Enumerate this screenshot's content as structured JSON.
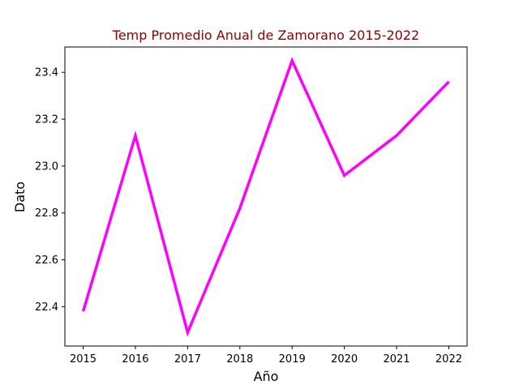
{
  "chart_data": {
    "type": "line",
    "title": "Temp Promedio Anual de Zamorano 2015-2022",
    "xlabel": "Año",
    "ylabel": "Dato",
    "x": [
      2015,
      2016,
      2017,
      2018,
      2019,
      2020,
      2021,
      2022
    ],
    "x_tick_labels": [
      "2015",
      "2016",
      "2017",
      "2018",
      "2019",
      "2020",
      "2021",
      "2022"
    ],
    "y_ticks": [
      22.4,
      22.6,
      22.8,
      23.0,
      23.2,
      23.4
    ],
    "y_tick_labels": [
      "22.4",
      "22.6",
      "22.8",
      "23.0",
      "23.2",
      "23.4"
    ],
    "xlim": [
      2014.65,
      2022.35
    ],
    "ylim": [
      22.232,
      23.508
    ],
    "grid": false,
    "series": [
      {
        "values": [
          22.38,
          23.13,
          22.29,
          22.82,
          23.45,
          22.96,
          23.13,
          23.36
        ],
        "color": "#ff00ff"
      }
    ],
    "title_color": "#8b0000"
  }
}
